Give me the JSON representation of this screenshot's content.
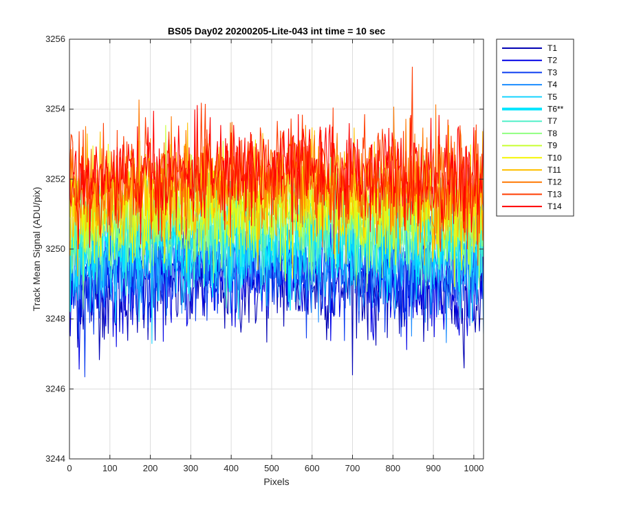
{
  "chart_data": {
    "type": "line",
    "title": "BS05 Day02 20200205-Lite-043 int time = 10 sec",
    "xlabel": "Pixels",
    "ylabel": "Track Mean Signal (ADU/pix)",
    "xlim": [
      0,
      1024
    ],
    "ylim": [
      3244,
      3256
    ],
    "xticks": [
      0,
      100,
      200,
      300,
      400,
      500,
      600,
      700,
      800,
      900,
      1000
    ],
    "yticks": [
      3244,
      3246,
      3248,
      3250,
      3252,
      3254,
      3256
    ],
    "grid": true,
    "legend_position": "outside-right",
    "series": [
      {
        "name": "T1",
        "color": "#0000b3",
        "approx_mean": 3248.9,
        "approx_noise": 0.75,
        "highlight": false
      },
      {
        "name": "T2",
        "color": "#0000e6",
        "approx_mean": 3249.1,
        "approx_noise": 0.7,
        "highlight": false
      },
      {
        "name": "T3",
        "color": "#0a3cf0",
        "approx_mean": 3249.3,
        "approx_noise": 0.7,
        "highlight": false
      },
      {
        "name": "T4",
        "color": "#1a8cff",
        "approx_mean": 3249.6,
        "approx_noise": 0.7,
        "highlight": false
      },
      {
        "name": "T5",
        "color": "#18d4ff",
        "approx_mean": 3249.9,
        "approx_noise": 0.7,
        "highlight": false
      },
      {
        "name": "T6**",
        "color": "#00e5ff",
        "approx_mean": 3250.2,
        "approx_noise": 0.7,
        "highlight": true
      },
      {
        "name": "T7",
        "color": "#50f0c8",
        "approx_mean": 3250.5,
        "approx_noise": 0.7,
        "highlight": false
      },
      {
        "name": "T8",
        "color": "#90ff80",
        "approx_mean": 3250.8,
        "approx_noise": 0.7,
        "highlight": false
      },
      {
        "name": "T9",
        "color": "#c8ff30",
        "approx_mean": 3251.0,
        "approx_noise": 0.7,
        "highlight": false
      },
      {
        "name": "T10",
        "color": "#f5f500",
        "approx_mean": 3251.3,
        "approx_noise": 0.75,
        "highlight": false
      },
      {
        "name": "T11",
        "color": "#ffc000",
        "approx_mean": 3251.6,
        "approx_noise": 0.75,
        "highlight": false
      },
      {
        "name": "T12",
        "color": "#ff7800",
        "approx_mean": 3251.8,
        "approx_noise": 0.75,
        "highlight": false
      },
      {
        "name": "T13",
        "color": "#ff3c00",
        "approx_mean": 3252.0,
        "approx_noise": 0.75,
        "highlight": false
      },
      {
        "name": "T14",
        "color": "#ff0000",
        "approx_mean": 3252.1,
        "approx_noise": 0.7,
        "highlight": false
      }
    ]
  }
}
